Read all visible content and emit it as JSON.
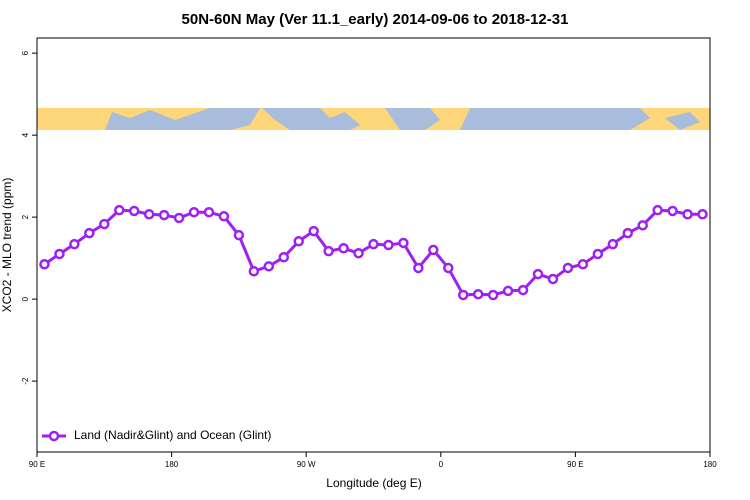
{
  "chart_data": {
    "type": "line",
    "title": "50N-60N May (Ver 11.1_early)   2014-09-06 to 2018-12-31",
    "x_label": "Longitude (deg E)",
    "y_label": "XCO2 - MLO trend (ppm)",
    "x": [
      95,
      105,
      115,
      125,
      135,
      145,
      155,
      165,
      175,
      185,
      195,
      205,
      215,
      225,
      235,
      245,
      255,
      265,
      275,
      285,
      295,
      305,
      315,
      325,
      335,
      345,
      355,
      365,
      375,
      385,
      395,
      405,
      415,
      425,
      435,
      445,
      455,
      465,
      475,
      485,
      495,
      505,
      515,
      525,
      535
    ],
    "series": [
      {
        "name": "Land (Nadir&Glint) and Ocean (Glint)",
        "color": "#a020f0",
        "values": [
          0.85,
          1.1,
          1.34,
          1.61,
          1.83,
          2.17,
          2.15,
          2.07,
          2.05,
          1.98,
          2.12,
          2.12,
          2.02,
          1.56,
          0.68,
          0.8,
          1.02,
          1.41,
          1.66,
          1.17,
          1.24,
          1.12,
          1.34,
          1.32,
          1.37,
          0.76,
          1.2,
          0.76,
          0.1,
          0.12,
          0.1,
          0.2,
          0.22,
          0.61,
          0.49,
          0.76,
          0.85,
          1.1,
          1.34,
          1.61,
          1.8,
          2.17,
          2.15,
          2.07,
          2.07
        ]
      }
    ],
    "xlim": [
      90,
      540
    ],
    "xticks": [
      {
        "value": 90,
        "label": "90 E"
      },
      180,
      {
        "value": 270,
        "label": "90 W"
      },
      {
        "value": 360,
        "label": "0"
      },
      {
        "value": 450,
        "label": "90 E"
      },
      {
        "value": 540,
        "label": "180"
      }
    ],
    "ylim": [
      -3.73,
      6.37
    ],
    "yticks": [
      -2,
      0,
      2,
      4,
      6
    ],
    "legend": "bottom-left"
  }
}
